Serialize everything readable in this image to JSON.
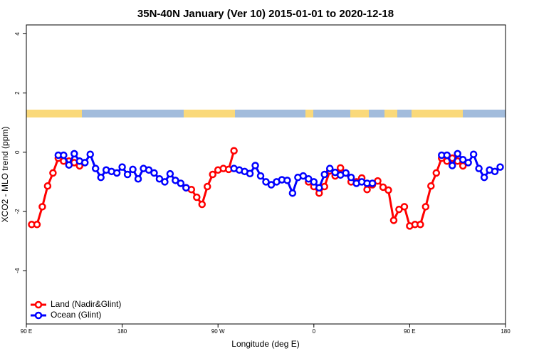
{
  "chart_data": {
    "type": "line",
    "title": "35N-40N January (Ver 10)   2015-01-01 to 2020-12-18",
    "x_label": "Longitude (deg E)",
    "y_label": "XCO2 - MLO trend (ppm)",
    "x": [
      95,
      100,
      105,
      110,
      115,
      120,
      125,
      130,
      135,
      140,
      145,
      150,
      155,
      160,
      165,
      170,
      175,
      180,
      185,
      190,
      195,
      200,
      205,
      210,
      215,
      220,
      225,
      230,
      235,
      240,
      245,
      250,
      255,
      260,
      265,
      270,
      275,
      280,
      285,
      290,
      295,
      300,
      305,
      310,
      315,
      320,
      325,
      330,
      335,
      340,
      345,
      350,
      355,
      360,
      365,
      370,
      375,
      380,
      385,
      390,
      395,
      400,
      405,
      410,
      415,
      420,
      425,
      430,
      435,
      440,
      445,
      450,
      455,
      460,
      465,
      470,
      475,
      480,
      485,
      490,
      495,
      500,
      505,
      510,
      515,
      520,
      525,
      530,
      535
    ],
    "series": [
      {
        "name": "Land (Nadir&Glint)",
        "color": "#ff0000",
        "values": [
          -2.44,
          -2.44,
          -1.84,
          -1.14,
          -0.7,
          -0.2,
          -0.3,
          -0.3,
          -0.35,
          -0.46,
          null,
          null,
          null,
          null,
          null,
          null,
          null,
          null,
          null,
          null,
          null,
          null,
          null,
          null,
          null,
          null,
          null,
          null,
          null,
          -1.2,
          -1.26,
          -1.52,
          -1.76,
          -1.16,
          -0.75,
          -0.6,
          -0.55,
          -0.58,
          0.05,
          null,
          null,
          null,
          null,
          null,
          null,
          null,
          null,
          null,
          null,
          null,
          null,
          null,
          -1.0,
          -1.16,
          -1.38,
          -1.16,
          -0.63,
          -0.8,
          -0.53,
          -0.7,
          -1.0,
          -1.0,
          -0.87,
          -1.26,
          -1.1,
          -0.97,
          -1.18,
          -1.28,
          -2.3,
          -1.93,
          -1.84,
          -2.49,
          -2.44,
          -2.44,
          -1.84,
          -1.14,
          -0.7,
          -0.2,
          -0.3,
          -0.2,
          -0.3,
          -0.46,
          null,
          null,
          null,
          null,
          null,
          null,
          null
        ]
      },
      {
        "name": "Ocean (Glint)",
        "color": "#0000ff",
        "values": [
          null,
          null,
          null,
          null,
          null,
          -0.1,
          -0.1,
          -0.43,
          -0.05,
          -0.3,
          -0.35,
          -0.07,
          -0.55,
          -0.85,
          -0.6,
          -0.65,
          -0.7,
          -0.5,
          -0.75,
          -0.58,
          -0.9,
          -0.55,
          -0.6,
          -0.7,
          -0.9,
          -1.0,
          -0.73,
          -0.95,
          -1.05,
          -1.2,
          null,
          null,
          null,
          null,
          null,
          null,
          null,
          null,
          -0.55,
          -0.6,
          -0.65,
          -0.72,
          -0.45,
          -0.8,
          -1.0,
          -1.1,
          -1.0,
          -0.93,
          -0.95,
          -1.38,
          -0.85,
          -0.8,
          -0.9,
          -1.0,
          -1.2,
          -0.75,
          -0.55,
          -0.68,
          -0.77,
          -0.7,
          -0.85,
          -1.05,
          -1.0,
          -1.05,
          -1.05,
          null,
          null,
          null,
          null,
          null,
          null,
          null,
          null,
          null,
          null,
          null,
          null,
          -0.1,
          -0.1,
          -0.45,
          -0.05,
          -0.25,
          -0.35,
          -0.07,
          -0.55,
          -0.85,
          -0.6,
          -0.65,
          -0.5
        ]
      }
    ],
    "xlim": [
      90,
      540
    ],
    "xticks": [
      {
        "value": 90,
        "label": "90 E"
      },
      180,
      {
        "value": 270,
        "label": "90 W"
      },
      {
        "value": 360,
        "label": "0"
      },
      {
        "value": 450,
        "label": "90 E"
      },
      {
        "value": 540,
        "label": "180"
      }
    ],
    "ylim": [
      -5.8,
      4.3
    ],
    "yticks": [
      -4,
      -2,
      0,
      2,
      4
    ],
    "legend": "bottomleft"
  }
}
